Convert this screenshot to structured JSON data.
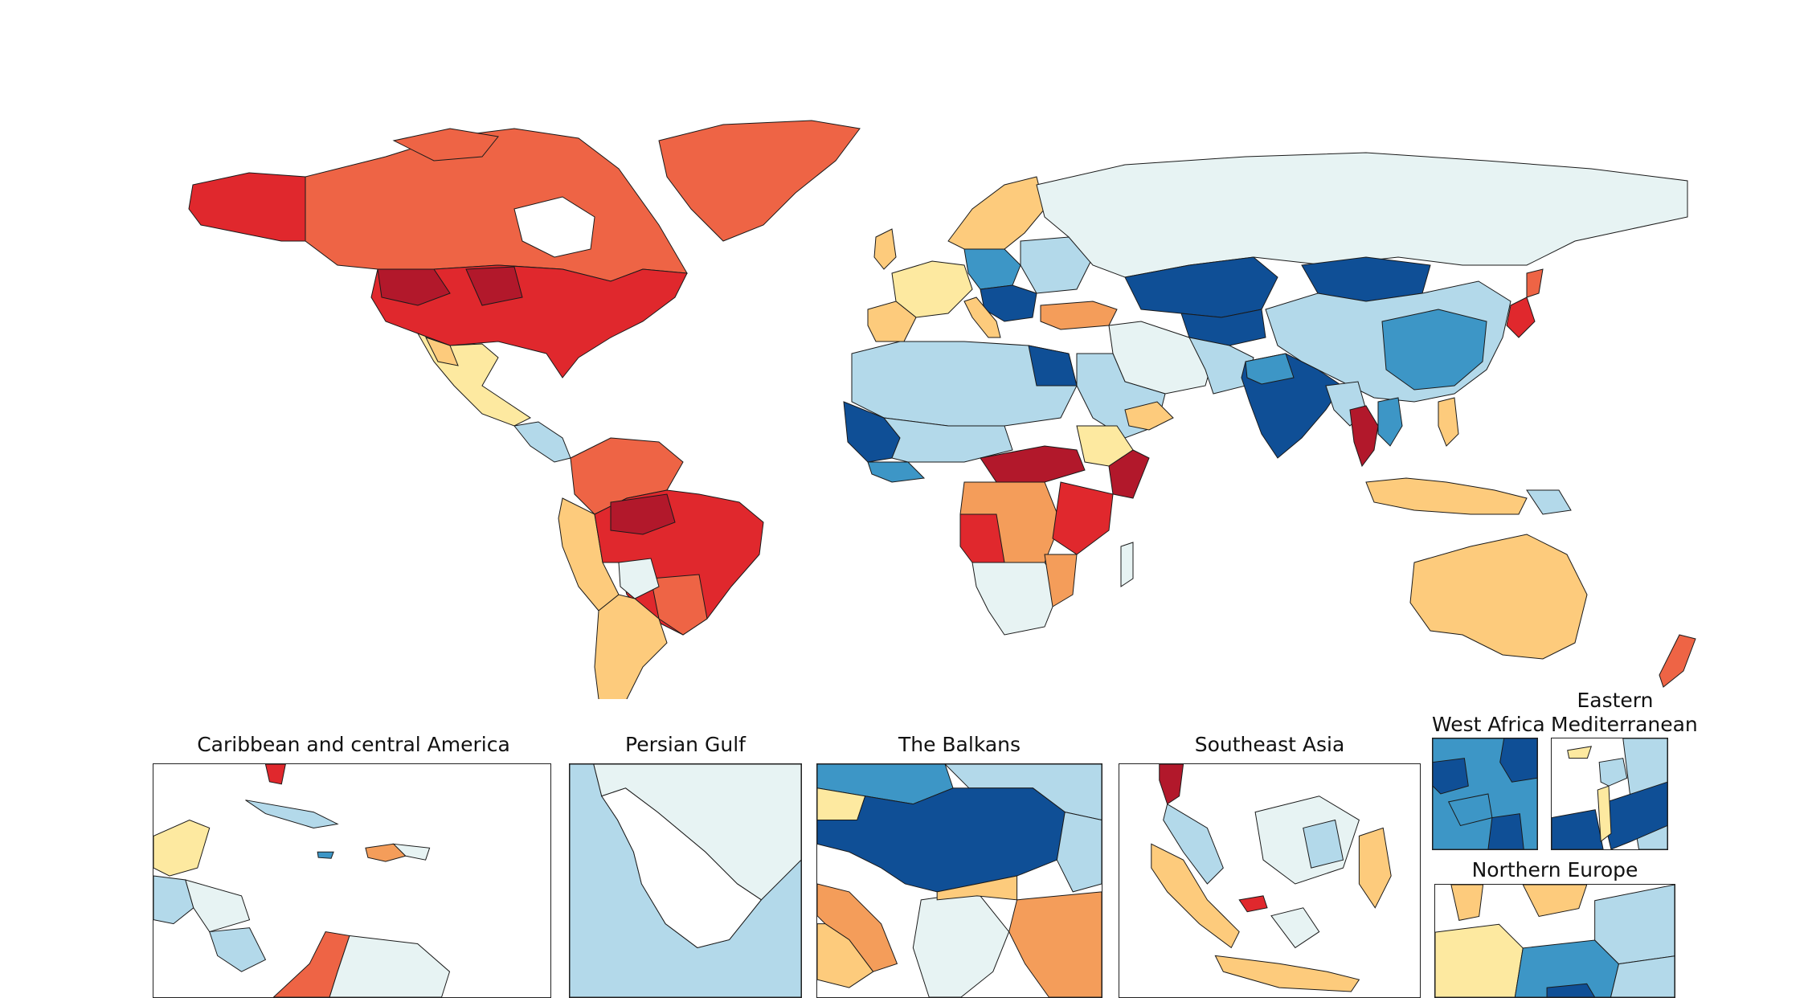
{
  "palette": {
    "darkest_red": "#b2182b",
    "red": "#e0282d",
    "orange_red": "#ee6445",
    "orange": "#f49d5a",
    "light_orange": "#fdcb7c",
    "pale_yellow": "#fde9a0",
    "very_pale": "#e7f3f3",
    "light_blue": "#b3d9ea",
    "mid_blue": "#3d96c6",
    "dark_blue": "#0f4f96"
  },
  "insets": [
    {
      "key": "caribbean",
      "title": "Caribbean and central America"
    },
    {
      "key": "persian_gulf",
      "title": "Persian Gulf"
    },
    {
      "key": "balkans",
      "title": "The Balkans"
    },
    {
      "key": "se_asia",
      "title": "Southeast Asia"
    },
    {
      "key": "west_africa",
      "title": "West Africa"
    },
    {
      "key": "east_med",
      "title": "Eastern\nMediterranean"
    },
    {
      "key": "n_europe",
      "title": "Northern Europe"
    }
  ]
}
